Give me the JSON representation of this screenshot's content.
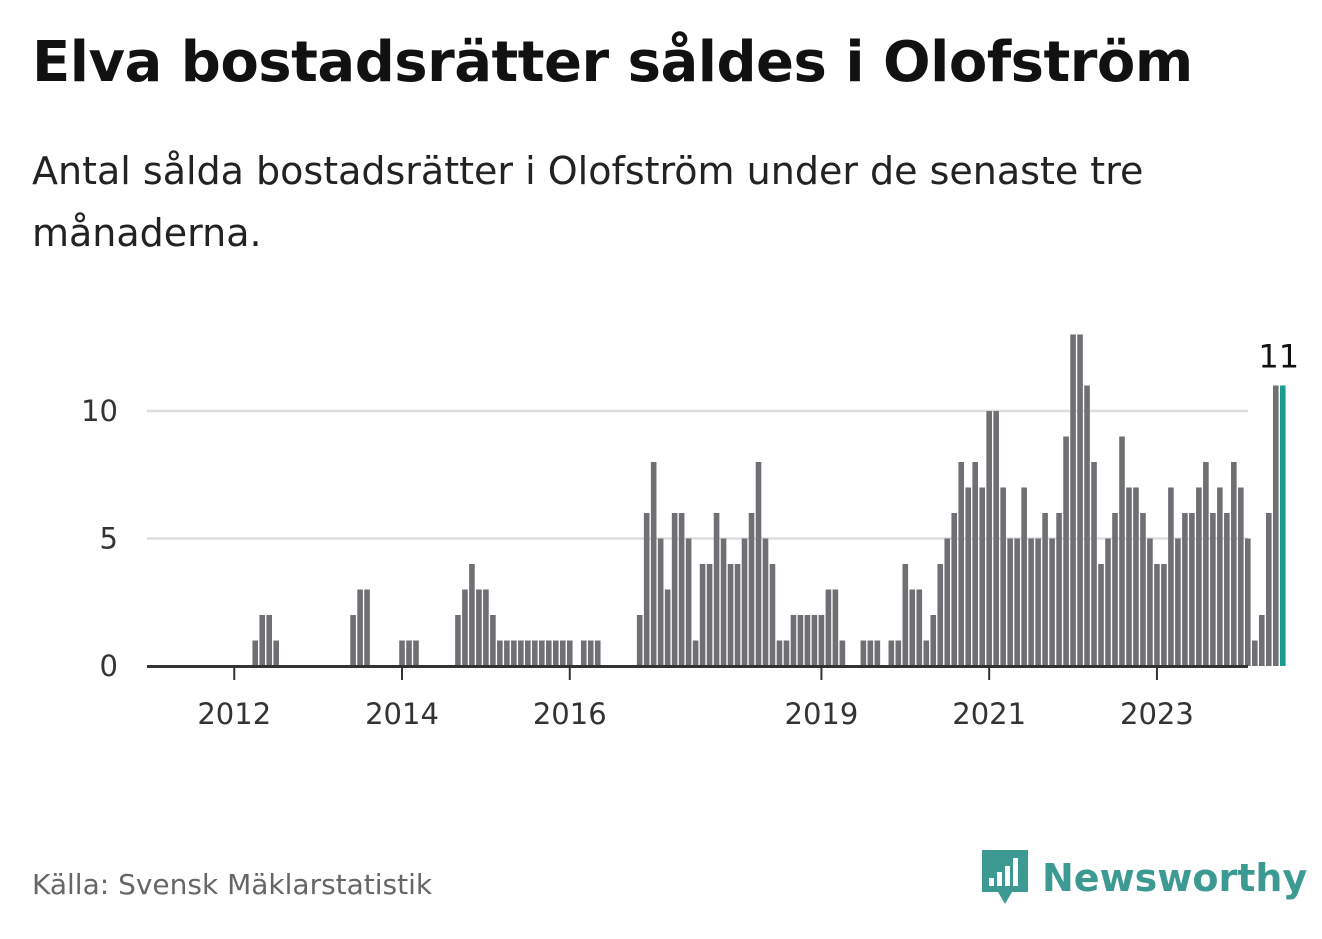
{
  "header": {
    "title": "Elva bostadsrätter såldes i Olofström",
    "subtitle": "Antal sålda bostadsrätter i Olofström under de senaste tre månaderna."
  },
  "footer": {
    "source": "Källa: Svensk Mäklarstatistik",
    "brand": "Newsworthy",
    "brand_icon": "bar-chart-speech-bubble-icon"
  },
  "chart_data": {
    "type": "bar",
    "start": "2011-09",
    "frequency": "monthly",
    "values": [
      0,
      0,
      0,
      0,
      0,
      0,
      0,
      1,
      2,
      2,
      1,
      0,
      0,
      0,
      0,
      0,
      0,
      0,
      0,
      0,
      0,
      2,
      3,
      3,
      0,
      0,
      0,
      0,
      1,
      1,
      1,
      0,
      0,
      0,
      0,
      0,
      2,
      3,
      4,
      3,
      3,
      2,
      1,
      1,
      1,
      1,
      1,
      1,
      1,
      1,
      1,
      1,
      1,
      0,
      1,
      1,
      1,
      0,
      0,
      0,
      0,
      0,
      2,
      6,
      8,
      5,
      3,
      6,
      6,
      5,
      1,
      4,
      4,
      6,
      5,
      4,
      4,
      5,
      6,
      8,
      5,
      4,
      1,
      1,
      2,
      2,
      2,
      2,
      2,
      3,
      3,
      1,
      0,
      0,
      1,
      1,
      1,
      0,
      1,
      1,
      4,
      3,
      3,
      1,
      2,
      4,
      5,
      6,
      8,
      7,
      8,
      7,
      10,
      10,
      7,
      5,
      5,
      7,
      5,
      5,
      6,
      5,
      6,
      9,
      13,
      13,
      11,
      8,
      4,
      5,
      6,
      9,
      7,
      7,
      6,
      5,
      4,
      4,
      7,
      5,
      6,
      6,
      7,
      8,
      6,
      7,
      6,
      8,
      7,
      5,
      1,
      2,
      6,
      11,
      11
    ],
    "highlight_last": true,
    "highlight_label": "11",
    "x_ticks": [
      "2012",
      "2014",
      "2016",
      "2019",
      "2021",
      "2023"
    ],
    "y_ticks": [
      0,
      5,
      10
    ],
    "ylim": [
      0,
      13
    ],
    "grid": true,
    "colors": {
      "bar": "#707074",
      "highlight": "#1a9c91",
      "grid": "#dddddd",
      "axis": "#333333"
    }
  }
}
